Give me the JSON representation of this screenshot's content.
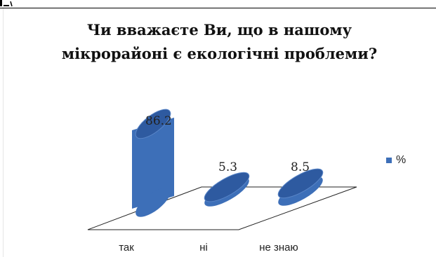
{
  "header_fragment": "",
  "chart_data": {
    "type": "bar",
    "title": "Чи вважаєте Ви, що в нашому мікрорайоні є екологічні проблеми?",
    "title_lines": [
      "Чи вважаєте Ви, що в нашому",
      "мікрорайоні є екологічні проблеми?"
    ],
    "categories": [
      "так",
      "ні",
      "не знаю"
    ],
    "series": [
      {
        "name": "%",
        "values": [
          86.2,
          5.3,
          8.5
        ]
      }
    ],
    "data_labels": [
      "86.2",
      "5.3",
      "8.5"
    ],
    "ylim": [
      0,
      100
    ],
    "grid": false,
    "legend_position": "right",
    "bar_color": "#3d6fb8",
    "bar_top_color": "#2e5aa0"
  }
}
